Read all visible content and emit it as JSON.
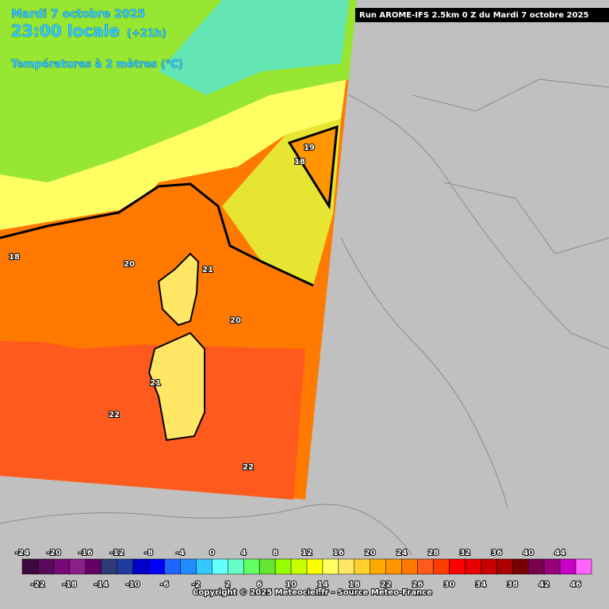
{
  "header": {
    "date": "Mardi 7 octobre 2025",
    "time": "23:00 locale",
    "lead": "(+21h)",
    "parameter": "Températures à 2 mètres (°C)",
    "run": "Run AROME-IFS 2.5km 0 Z du Mardi 7 octobre 2025"
  },
  "map_labels": [
    18,
    20,
    21,
    20,
    22,
    22,
    19,
    18,
    21
  ],
  "colorbar": {
    "ticks": [
      -24,
      -22,
      -20,
      -18,
      -16,
      -14,
      -12,
      -10,
      -8,
      -6,
      -4,
      -2,
      0,
      2,
      4,
      6,
      8,
      10,
      12,
      14,
      16,
      18,
      20,
      22,
      24,
      26,
      28,
      30,
      32,
      34,
      36,
      38,
      40,
      42,
      44,
      46
    ],
    "colors": [
      "#3c0a3c",
      "#5a0a5a",
      "#780a78",
      "#8c1e8c",
      "#640064",
      "#2d3c78",
      "#1e3ca0",
      "#0000c8",
      "#0000ff",
      "#1e64ff",
      "#1e8cff",
      "#32c8ff",
      "#64ffff",
      "#64ffc8",
      "#64ff64",
      "#64e632",
      "#96ff00",
      "#c8ff00",
      "#ffff00",
      "#ffff64",
      "#ffe664",
      "#ffd232",
      "#ffaa00",
      "#ff9600",
      "#ff7800",
      "#ff5a1e",
      "#ff3c00",
      "#ff0000",
      "#e60000",
      "#c80000",
      "#aa0000",
      "#780000",
      "#780050",
      "#960078",
      "#c800c8",
      "#ff64ff"
    ]
  },
  "footer": {
    "copyright": "Copyright © 2025 Meteociel.fr - Source Meteo-France"
  }
}
